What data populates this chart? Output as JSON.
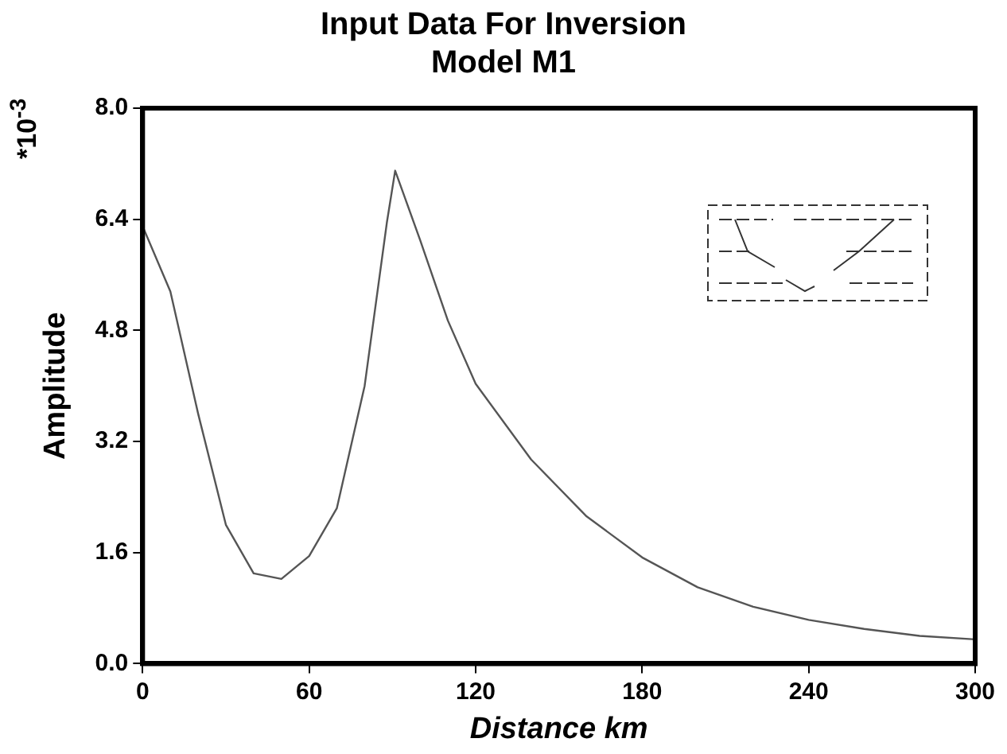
{
  "chart_data": {
    "type": "line",
    "title": "Input Data For Inversion",
    "subtitle": "Model M1",
    "xlabel": "Distance km",
    "ylabel": "Amplitude",
    "annotations": [
      "*10$^{-3}$"
    ],
    "x": [
      0,
      10,
      20,
      30,
      40,
      50,
      60,
      70,
      80,
      88,
      91,
      100,
      110,
      120,
      140,
      160,
      180,
      200,
      220,
      240,
      260,
      280,
      300
    ],
    "series": [
      {
        "color": "#555555",
        "values": [
          6.3,
          5.36,
          3.6,
          2.0,
          1.3,
          1.22,
          1.55,
          2.24,
          4.0,
          6.35,
          7.1,
          6.1,
          4.94,
          4.03,
          2.94,
          2.12,
          1.53,
          1.1,
          0.82,
          0.63,
          0.5,
          0.4,
          0.35
        ]
      }
    ],
    "xlim": [
      0,
      300
    ],
    "xticks": [
      0,
      60,
      120,
      180,
      240,
      300
    ],
    "ylim": [
      0,
      8
    ],
    "yticks": [
      {
        "value": 0,
        "label": "0.0"
      },
      1.6,
      3.2,
      4.8,
      6.4,
      {
        "value": 8,
        "label": "8.0"
      }
    ],
    "grid": false,
    "legend": false,
    "marker": "none",
    "line_style": "solid"
  }
}
